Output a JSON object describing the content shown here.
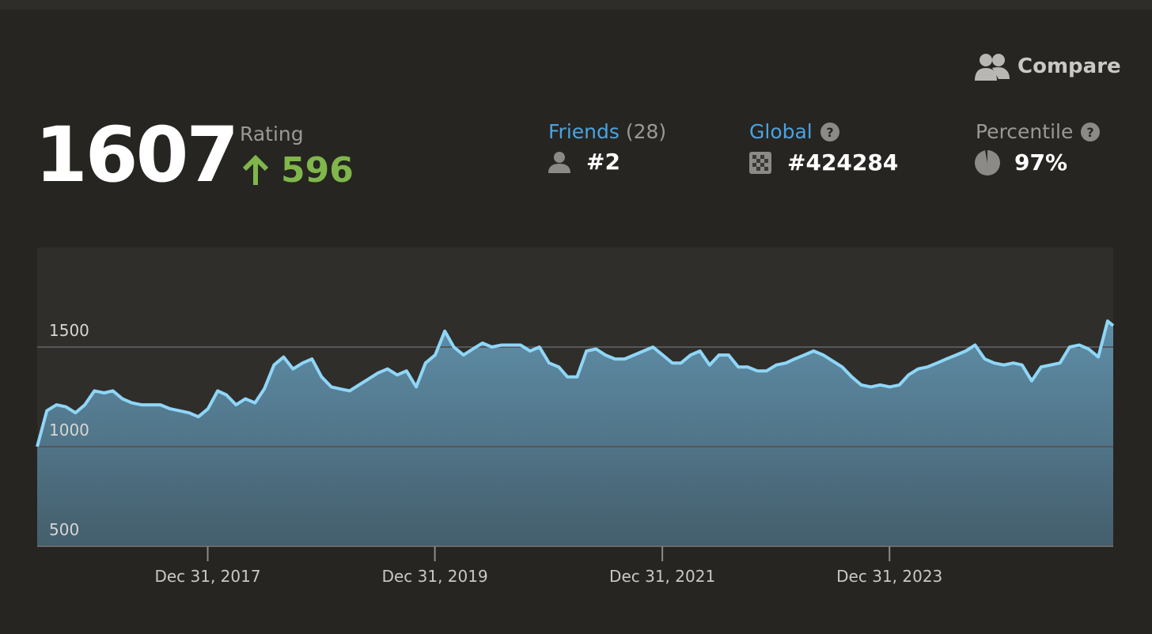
{
  "header": {
    "compare": "Compare",
    "rating": {
      "value": "1607",
      "label": "Rating",
      "change": "596"
    },
    "stats": [
      {
        "label": "Friends",
        "count": "(28)",
        "rank": "#2"
      },
      {
        "label": "Global",
        "rank": "#424284"
      },
      {
        "label": "Percentile",
        "rank": "97%"
      }
    ]
  },
  "chart_data": {
    "type": "area",
    "color": "#8fd6f7",
    "grid": true,
    "x": [
      "2016-07-01",
      "2016-08-01",
      "2016-09-01",
      "2016-10-01",
      "2016-11-01",
      "2016-12-01",
      "2017-01-01",
      "2017-02-01",
      "2017-03-01",
      "2017-04-01",
      "2017-05-01",
      "2017-06-01",
      "2017-07-01",
      "2017-08-01",
      "2017-09-01",
      "2017-10-01",
      "2017-11-01",
      "2017-12-01",
      "2018-01-01",
      "2018-02-01",
      "2018-03-01",
      "2018-04-01",
      "2018-05-01",
      "2018-06-01",
      "2018-07-01",
      "2018-08-01",
      "2018-09-01",
      "2018-10-01",
      "2018-11-01",
      "2018-12-01",
      "2019-01-01",
      "2019-02-01",
      "2019-03-01",
      "2019-04-01",
      "2019-05-01",
      "2019-06-01",
      "2019-07-01",
      "2019-08-01",
      "2019-09-01",
      "2019-10-01",
      "2019-11-01",
      "2019-12-01",
      "2020-01-01",
      "2020-02-01",
      "2020-03-01",
      "2020-04-01",
      "2020-05-01",
      "2020-06-01",
      "2020-07-01",
      "2020-08-01",
      "2020-09-01",
      "2020-10-01",
      "2020-11-01",
      "2020-12-01",
      "2021-01-01",
      "2021-02-01",
      "2021-03-01",
      "2021-04-01",
      "2021-05-01",
      "2021-06-01",
      "2021-07-01",
      "2021-08-01",
      "2021-09-01",
      "2021-10-01",
      "2021-11-01",
      "2021-12-01",
      "2022-01-01",
      "2022-02-01",
      "2022-03-01",
      "2022-04-01",
      "2022-05-01",
      "2022-06-01",
      "2022-07-01",
      "2022-08-01",
      "2022-09-01",
      "2022-10-01",
      "2022-11-01",
      "2022-12-01",
      "2023-01-01",
      "2023-02-01",
      "2023-03-01",
      "2023-04-01",
      "2023-05-01",
      "2023-06-01",
      "2023-07-01",
      "2023-08-01",
      "2023-09-01",
      "2023-10-01",
      "2023-11-01",
      "2023-12-01",
      "2024-01-01",
      "2024-02-01",
      "2024-03-01",
      "2024-04-01",
      "2024-05-01",
      "2024-06-01",
      "2024-07-01",
      "2024-08-01",
      "2024-09-01",
      "2024-10-01",
      "2024-11-01",
      "2024-12-01",
      "2025-01-01",
      "2025-02-01",
      "2025-03-01",
      "2025-04-01",
      "2025-05-01",
      "2025-06-01",
      "2025-07-01",
      "2025-08-01",
      "2025-09-01",
      "2025-10-01",
      "2025-11-01",
      "2025-12-01",
      "2025-12-19"
    ],
    "values": [
      1000,
      1180,
      1210,
      1200,
      1170,
      1210,
      1280,
      1270,
      1280,
      1240,
      1220,
      1210,
      1210,
      1210,
      1190,
      1180,
      1170,
      1150,
      1190,
      1280,
      1260,
      1210,
      1240,
      1220,
      1290,
      1410,
      1450,
      1390,
      1420,
      1440,
      1350,
      1300,
      1290,
      1280,
      1310,
      1340,
      1370,
      1390,
      1360,
      1380,
      1300,
      1420,
      1460,
      1580,
      1500,
      1460,
      1490,
      1520,
      1500,
      1510,
      1510,
      1510,
      1480,
      1500,
      1420,
      1400,
      1350,
      1350,
      1480,
      1490,
      1460,
      1440,
      1440,
      1460,
      1480,
      1500,
      1460,
      1420,
      1420,
      1460,
      1480,
      1410,
      1460,
      1460,
      1400,
      1400,
      1380,
      1380,
      1410,
      1420,
      1440,
      1460,
      1480,
      1460,
      1430,
      1400,
      1350,
      1310,
      1300,
      1310,
      1300,
      1310,
      1360,
      1390,
      1400,
      1420,
      1440,
      1460,
      1480,
      1510,
      1440,
      1420,
      1410,
      1420,
      1410,
      1330,
      1400,
      1410,
      1420,
      1500,
      1510,
      1490,
      1450,
      1630,
      1607
    ],
    "xlim": [
      "2016-07-01",
      "2025-12-19"
    ],
    "xticks": [
      {
        "value": "2017-12-31",
        "label": "Dec 31, 2017"
      },
      {
        "value": "2019-12-31",
        "label": "Dec 31, 2019"
      },
      {
        "value": "2021-12-31",
        "label": "Dec 31, 2021"
      },
      {
        "value": "2023-12-31",
        "label": "Dec 31, 2023"
      }
    ],
    "ylim": [
      500,
      2000
    ],
    "yticks": [
      500,
      1000,
      1500
    ]
  }
}
